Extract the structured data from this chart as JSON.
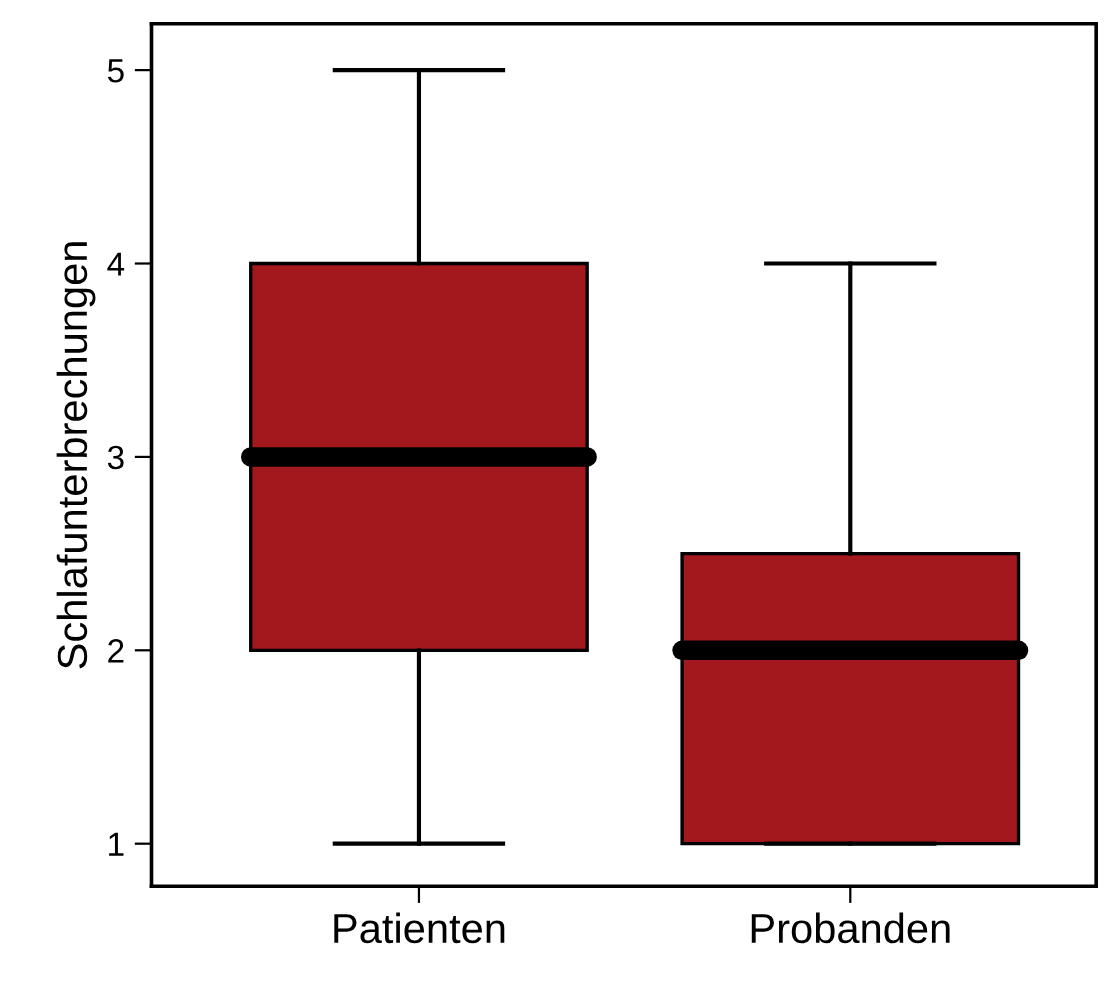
{
  "chart_data": {
    "type": "box",
    "ylabel": "Schlafunterbrechungen",
    "categories": [
      "Patienten",
      "Probanden"
    ],
    "color": "#a3181c",
    "boxes": [
      {
        "low": 1,
        "q1": 2,
        "median": 3,
        "q3": 4,
        "high": 5
      },
      {
        "low": 1,
        "q1": 1,
        "median": 2,
        "q3": 2.5,
        "high": 4
      }
    ],
    "ylim": [
      0.78,
      5.24
    ],
    "yticks": [
      1,
      2,
      3,
      4,
      5
    ],
    "grid": false
  }
}
